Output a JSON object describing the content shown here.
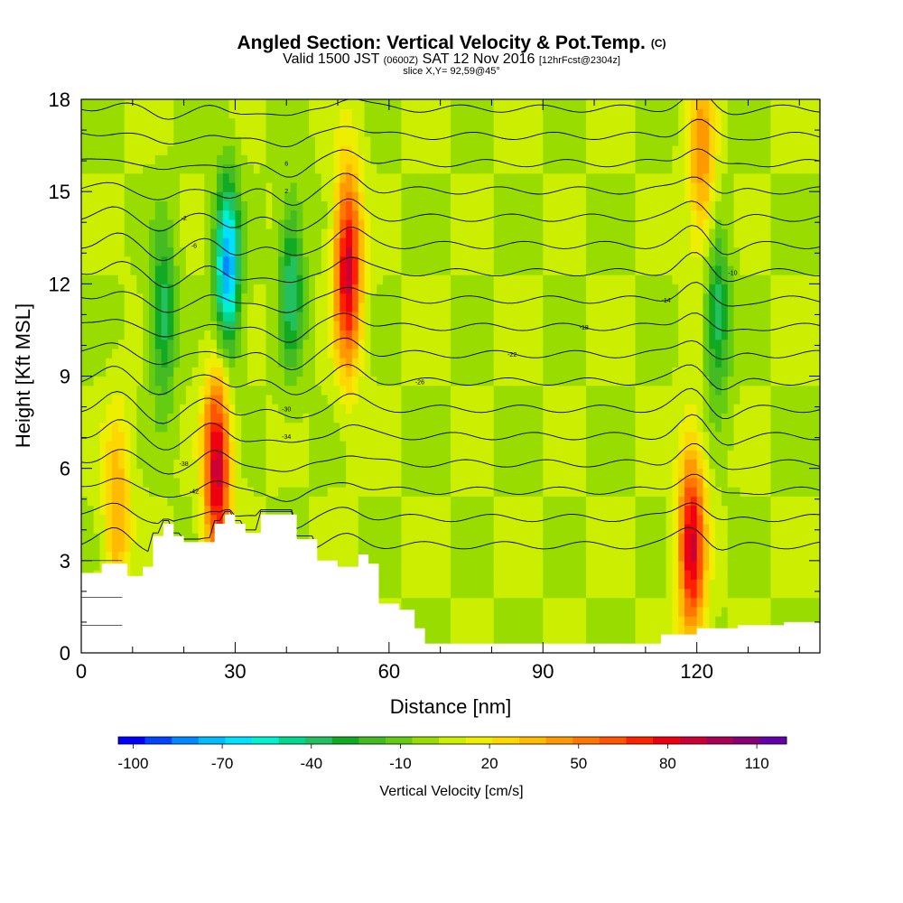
{
  "header": {
    "title": "Angled Section: Vertical Velocity & Pot.Temp.",
    "title_units": "(C)",
    "valid_prefix": "Valid 1500 JST",
    "valid_utc": "(0600Z)",
    "valid_date": "SAT 12 Nov 2016",
    "forecast": "[12hrFcst@2304z]",
    "slice": "slice X,Y= 92,59@45°"
  },
  "chart_data": {
    "type": "heatmap",
    "xlabel": "Distance [nm]",
    "ylabel": "Height [Kft MSL]",
    "xlim": [
      0,
      144
    ],
    "ylim": [
      0,
      18
    ],
    "x_ticks": [
      0,
      30,
      60,
      90,
      120
    ],
    "y_ticks": [
      0,
      3,
      6,
      9,
      12,
      15,
      18
    ],
    "colorbar": {
      "label": "Vertical Velocity [cm/s]",
      "tick_labels": [
        "-100",
        "-70",
        "-40",
        "-10",
        "20",
        "50",
        "80",
        "110"
      ],
      "tick_values": [
        -100,
        -70,
        -40,
        -10,
        20,
        50,
        80,
        110
      ],
      "range": [
        -105,
        120
      ],
      "colors": [
        "#0000ff",
        "#0044ff",
        "#0088ff",
        "#00bbff",
        "#00e0ff",
        "#00f0d0",
        "#00d890",
        "#22c060",
        "#11aa22",
        "#44bb22",
        "#66cc11",
        "#99dd00",
        "#ccee00",
        "#eeee00",
        "#ffd700",
        "#ffbb00",
        "#ff9900",
        "#ff7700",
        "#ff5500",
        "#ff2200",
        "#ee0011",
        "#cc0033",
        "#aa0055",
        "#880077",
        "#6600aa"
      ]
    },
    "terrain_profile": [
      [
        0,
        2.6
      ],
      [
        4,
        2.9
      ],
      [
        9,
        2.5
      ],
      [
        12,
        2.8
      ],
      [
        14,
        3.8
      ],
      [
        16,
        4.2
      ],
      [
        18,
        3.8
      ],
      [
        20,
        3.6
      ],
      [
        24,
        3.6
      ],
      [
        26,
        4.2
      ],
      [
        28,
        4.5
      ],
      [
        30,
        4.2
      ],
      [
        32,
        3.9
      ],
      [
        35,
        4.5
      ],
      [
        40,
        4.5
      ],
      [
        42,
        3.7
      ],
      [
        46,
        3
      ],
      [
        50,
        2.8
      ],
      [
        54,
        3.2
      ],
      [
        56,
        2.9
      ],
      [
        58,
        1.6
      ],
      [
        62,
        1.4
      ],
      [
        65,
        0.8
      ],
      [
        67,
        0.3
      ],
      [
        110,
        0.3
      ],
      [
        113,
        0.6
      ],
      [
        120,
        0.8
      ],
      [
        125,
        0.8
      ],
      [
        128,
        0.9
      ],
      [
        137,
        1
      ],
      [
        144,
        1.3
      ]
    ],
    "updraft_cores": [
      {
        "x": 26.5,
        "y": 6,
        "w_max": 90
      },
      {
        "x": 52,
        "y": 12.5,
        "w_max": 90
      },
      {
        "x": 119,
        "y": 3.5,
        "w_max": 85
      },
      {
        "x": 121,
        "y": 16,
        "w_max": 45
      },
      {
        "x": 7,
        "y": 4.5,
        "w_max": 40
      }
    ],
    "downdraft_cores": [
      {
        "x": 28.5,
        "y": 12.5,
        "w_max": -80
      },
      {
        "x": 16,
        "y": 11,
        "w_max": -40
      },
      {
        "x": 41,
        "y": 12,
        "w_max": -40
      },
      {
        "x": 124,
        "y": 11,
        "w_max": -40
      }
    ],
    "isotherms": {
      "levels": [
        -36,
        -33,
        -30,
        -27,
        -24,
        -21,
        -18,
        -15,
        -12,
        -9,
        -6,
        -3,
        0,
        3,
        6,
        9,
        12
      ],
      "contour_labels": [
        "-42",
        "-38",
        "-34",
        "-30",
        "-26",
        "-22",
        "-18",
        "-14",
        "-10",
        "-6",
        "-2",
        "2",
        "6"
      ]
    }
  }
}
